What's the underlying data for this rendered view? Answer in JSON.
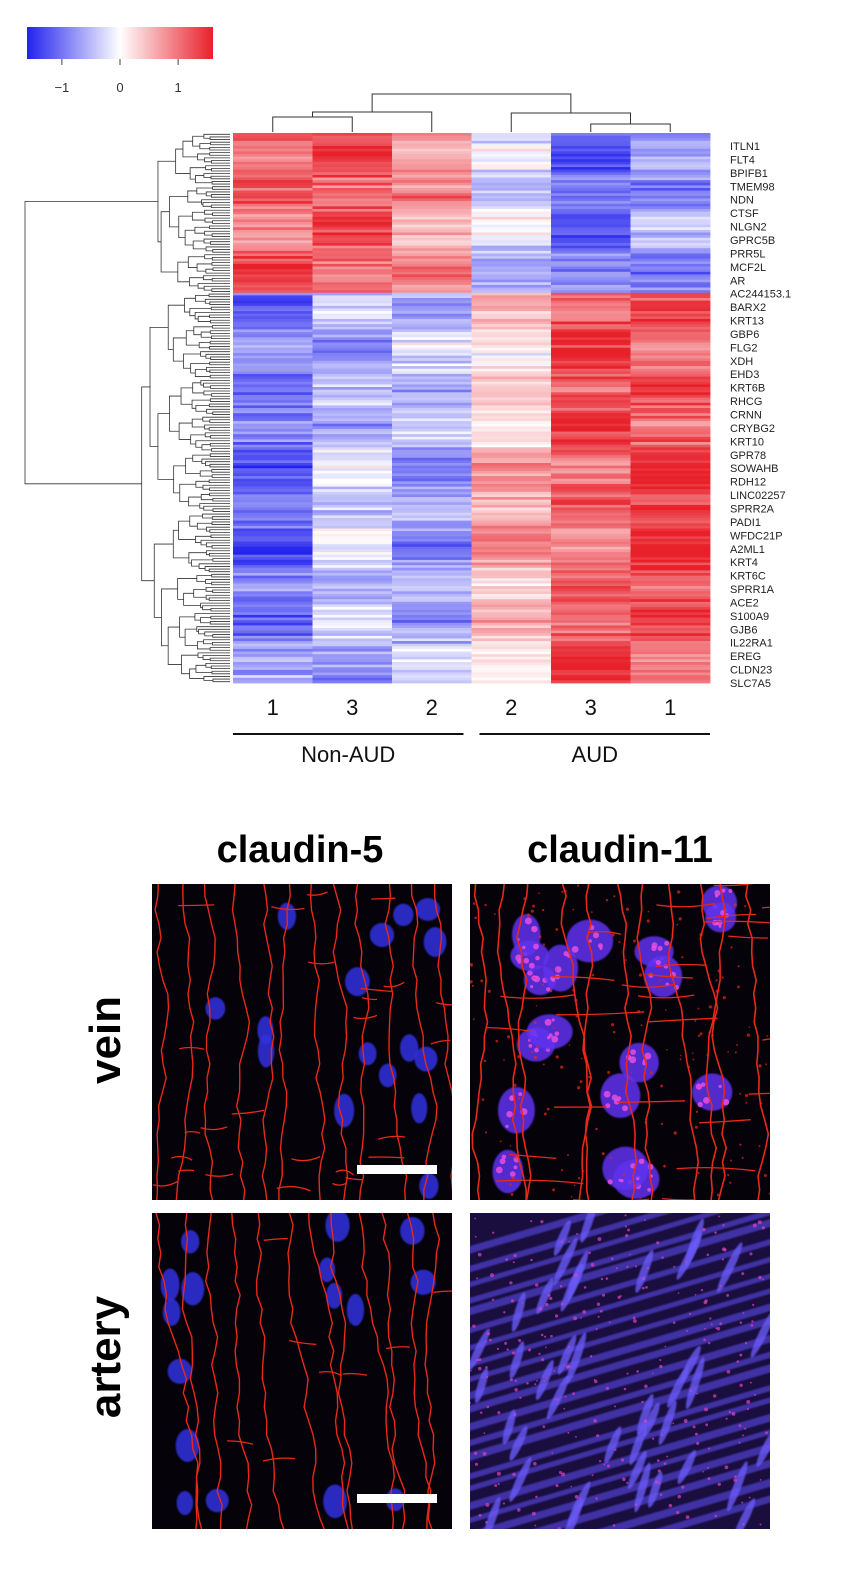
{
  "chart_data": [
    {
      "type": "heatmap",
      "color_scale": {
        "low": "#2222ee",
        "mid": "#ffffff",
        "high": "#e8202a",
        "range": [
          -1.6,
          1.6
        ],
        "tick_labels": [
          "−1",
          "0",
          "1"
        ],
        "tick_values": [
          -1,
          0,
          1
        ]
      },
      "columns": [
        "1",
        "3",
        "2",
        "2",
        "3",
        "1"
      ],
      "column_groups": [
        {
          "label": "Non-AUD",
          "columns": [
            0,
            1,
            2
          ]
        },
        {
          "label": "AUD",
          "columns": [
            3,
            4,
            5
          ]
        }
      ],
      "row_labels": [
        "ITLN1",
        "FLT4",
        "BPIFB1",
        "TMEM98",
        "NDN",
        "CTSF",
        "NLGN2",
        "GPRC5B",
        "PRR5L",
        "MCF2L",
        "AR",
        "AC244153.1",
        "BARX2",
        "KRT13",
        "GBP6",
        "FLG2",
        "XDH",
        "EHD3",
        "KRT6B",
        "RHCG",
        "CRNN",
        "CRYBG2",
        "KRT10",
        "GPR78",
        "SOWAHB",
        "RDH12",
        "LINC02257",
        "SPRR2A",
        "PADI1",
        "WFDC21P",
        "A2ML1",
        "KRT4",
        "KRT6C",
        "SPRR1A",
        "ACE2",
        "S100A9",
        "GJB6",
        "IL22RA1",
        "EREG",
        "CLDN23",
        "SLC7A5"
      ],
      "row_clusters": [
        {
          "name": "up_in_non_aud",
          "row_fraction": 0.29,
          "mean_z": [
            1.2,
            1.05,
            0.85,
            -0.4,
            -0.95,
            -0.85
          ]
        },
        {
          "name": "up_in_aud",
          "row_fraction": 0.71,
          "mean_z": [
            -1.0,
            -0.45,
            -0.6,
            0.5,
            1.15,
            1.25
          ]
        }
      ],
      "dendrograms": {
        "rows": true,
        "columns": true
      }
    },
    {
      "type": "image_panels",
      "column_titles": [
        "claudin-5",
        "claudin-11"
      ],
      "row_titles": [
        "vein",
        "artery"
      ],
      "panels": [
        {
          "row": "vein",
          "column": "claudin-5",
          "scale_bar": true
        },
        {
          "row": "vein",
          "column": "claudin-11",
          "scale_bar": false
        },
        {
          "row": "artery",
          "column": "claudin-5",
          "scale_bar": true
        },
        {
          "row": "artery",
          "column": "claudin-11",
          "scale_bar": false
        }
      ]
    }
  ]
}
